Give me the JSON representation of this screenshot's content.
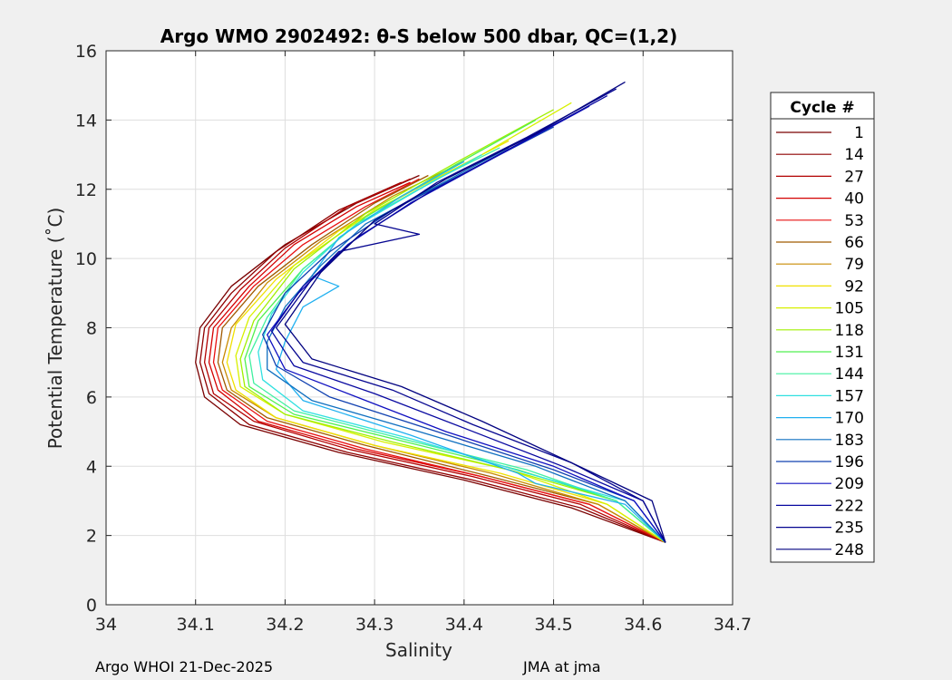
{
  "chart_data": {
    "type": "line",
    "title": "Argo WMO 2902492: θ-S below 500 dbar,  QC=(1,2)",
    "xlabel": "Salinity",
    "ylabel": "Potential Temperature (˚C)",
    "xlim": [
      34.0,
      34.7
    ],
    "ylim": [
      0,
      16
    ],
    "xticks": [
      "34",
      "34.1",
      "34.2",
      "34.3",
      "34.4",
      "34.5",
      "34.6",
      "34.7"
    ],
    "yticks": [
      "0",
      "2",
      "4",
      "6",
      "8",
      "10",
      "12",
      "14",
      "16"
    ],
    "grid": true,
    "legend": {
      "title": "Cycle #",
      "position": "right-outside",
      "entries": [
        "1",
        "14",
        "27",
        "40",
        "53",
        "66",
        "79",
        "92",
        "105",
        "118",
        "131",
        "144",
        "157",
        "170",
        "183",
        "196",
        "209",
        "222",
        "235",
        "248"
      ],
      "colors": [
        "#7a0000",
        "#8f0000",
        "#b20000",
        "#d40000",
        "#e81010",
        "#a05a00",
        "#c88a00",
        "#f0e000",
        "#d8f000",
        "#a0f000",
        "#50f050",
        "#40f0a0",
        "#30e0e0",
        "#20b0f0",
        "#1070c0",
        "#1040b0",
        "#1010c0",
        "#0808a0",
        "#050590",
        "#020280"
      ]
    },
    "series": [
      {
        "values": [
          [
            34.35,
            12.4
          ],
          [
            34.28,
            11.6
          ],
          [
            34.2,
            10.4
          ],
          [
            34.14,
            9.2
          ],
          [
            34.105,
            8.0
          ],
          [
            34.1,
            7.0
          ],
          [
            34.11,
            6.0
          ],
          [
            34.15,
            5.2
          ],
          [
            34.26,
            4.4
          ],
          [
            34.4,
            3.6
          ],
          [
            34.52,
            2.8
          ],
          [
            34.625,
            1.8
          ]
        ]
      },
      {
        "values": [
          [
            34.33,
            12.2
          ],
          [
            34.26,
            11.4
          ],
          [
            34.19,
            10.2
          ],
          [
            34.14,
            9.0
          ],
          [
            34.11,
            8.0
          ],
          [
            34.105,
            7.0
          ],
          [
            34.115,
            6.1
          ],
          [
            34.16,
            5.2
          ],
          [
            34.27,
            4.4
          ],
          [
            34.41,
            3.6
          ],
          [
            34.53,
            2.8
          ],
          [
            34.625,
            1.8
          ]
        ]
      },
      {
        "values": [
          [
            34.34,
            12.3
          ],
          [
            34.27,
            11.5
          ],
          [
            34.2,
            10.3
          ],
          [
            34.15,
            9.1
          ],
          [
            34.115,
            8.0
          ],
          [
            34.11,
            7.0
          ],
          [
            34.12,
            6.1
          ],
          [
            34.165,
            5.3
          ],
          [
            34.27,
            4.5
          ],
          [
            34.41,
            3.7
          ],
          [
            34.53,
            2.9
          ],
          [
            34.625,
            1.8
          ]
        ]
      },
      {
        "values": [
          [
            34.34,
            12.2
          ],
          [
            34.28,
            11.5
          ],
          [
            34.21,
            10.4
          ],
          [
            34.16,
            9.2
          ],
          [
            34.12,
            8.0
          ],
          [
            34.115,
            7.0
          ],
          [
            34.125,
            6.2
          ],
          [
            34.17,
            5.3
          ],
          [
            34.28,
            4.5
          ],
          [
            34.42,
            3.7
          ],
          [
            34.54,
            2.9
          ],
          [
            34.625,
            1.8
          ]
        ]
      },
      {
        "values": [
          [
            34.35,
            12.3
          ],
          [
            34.29,
            11.5
          ],
          [
            34.22,
            10.4
          ],
          [
            34.165,
            9.2
          ],
          [
            34.125,
            8.0
          ],
          [
            34.12,
            7.0
          ],
          [
            34.13,
            6.2
          ],
          [
            34.18,
            5.3
          ],
          [
            34.29,
            4.5
          ],
          [
            34.42,
            3.7
          ],
          [
            34.54,
            2.9
          ],
          [
            34.625,
            1.8
          ]
        ]
      },
      {
        "values": [
          [
            34.36,
            12.4
          ],
          [
            34.3,
            11.6
          ],
          [
            34.23,
            10.4
          ],
          [
            34.17,
            9.2
          ],
          [
            34.13,
            8.0
          ],
          [
            34.125,
            7.0
          ],
          [
            34.135,
            6.2
          ],
          [
            34.18,
            5.4
          ],
          [
            34.29,
            4.6
          ],
          [
            34.43,
            3.7
          ],
          [
            34.55,
            2.9
          ],
          [
            34.625,
            1.8
          ]
        ]
      },
      {
        "values": [
          [
            34.4,
            12.8
          ],
          [
            34.32,
            11.8
          ],
          [
            34.24,
            10.5
          ],
          [
            34.18,
            9.3
          ],
          [
            34.14,
            8.0
          ],
          [
            34.13,
            7.0
          ],
          [
            34.14,
            6.2
          ],
          [
            34.19,
            5.4
          ],
          [
            34.3,
            4.6
          ],
          [
            34.43,
            3.8
          ],
          [
            34.55,
            2.9
          ],
          [
            34.625,
            1.8
          ]
        ]
      },
      {
        "values": [
          [
            34.45,
            13.4
          ],
          [
            34.36,
            12.2
          ],
          [
            34.26,
            10.8
          ],
          [
            34.19,
            9.4
          ],
          [
            34.145,
            8.1
          ],
          [
            34.135,
            7.0
          ],
          [
            34.145,
            6.2
          ],
          [
            34.19,
            5.4
          ],
          [
            34.3,
            4.6
          ],
          [
            34.44,
            3.8
          ],
          [
            34.56,
            2.9
          ],
          [
            34.625,
            1.8
          ]
        ]
      },
      {
        "values": [
          [
            34.52,
            14.5
          ],
          [
            34.42,
            13.0
          ],
          [
            34.3,
            11.4
          ],
          [
            34.21,
            9.8
          ],
          [
            34.16,
            8.3
          ],
          [
            34.145,
            7.2
          ],
          [
            34.15,
            6.3
          ],
          [
            34.2,
            5.5
          ],
          [
            34.31,
            4.7
          ],
          [
            34.45,
            3.9
          ],
          [
            34.56,
            2.9
          ],
          [
            34.625,
            1.8
          ]
        ]
      },
      {
        "values": [
          [
            34.5,
            14.3
          ],
          [
            34.4,
            12.9
          ],
          [
            34.29,
            11.3
          ],
          [
            34.21,
            9.7
          ],
          [
            34.165,
            8.2
          ],
          [
            34.15,
            7.1
          ],
          [
            34.155,
            6.3
          ],
          [
            34.2,
            5.5
          ],
          [
            34.32,
            4.7
          ],
          [
            34.45,
            3.9
          ],
          [
            34.57,
            3.0
          ],
          [
            34.625,
            1.8
          ]
        ]
      },
      {
        "values": [
          [
            34.48,
            14.0
          ],
          [
            34.39,
            12.7
          ],
          [
            34.29,
            11.2
          ],
          [
            34.22,
            9.7
          ],
          [
            34.17,
            8.2
          ],
          [
            34.155,
            7.1
          ],
          [
            34.16,
            6.3
          ],
          [
            34.21,
            5.5
          ],
          [
            34.32,
            4.8
          ],
          [
            34.46,
            3.9
          ],
          [
            34.57,
            3.0
          ],
          [
            34.625,
            1.8
          ]
        ]
      },
      {
        "values": [
          [
            34.44,
            13.2
          ],
          [
            34.37,
            12.3
          ],
          [
            34.28,
            11.0
          ],
          [
            34.22,
            9.7
          ],
          [
            34.18,
            8.3
          ],
          [
            34.16,
            7.2
          ],
          [
            34.165,
            6.4
          ],
          [
            34.21,
            5.6
          ],
          [
            34.33,
            4.8
          ],
          [
            34.47,
            3.9
          ],
          [
            34.57,
            3.0
          ],
          [
            34.625,
            1.8
          ]
        ]
      },
      {
        "values": [
          [
            34.42,
            13.0
          ],
          [
            34.35,
            12.0
          ],
          [
            34.27,
            10.8
          ],
          [
            34.22,
            9.6
          ],
          [
            34.185,
            8.4
          ],
          [
            34.17,
            7.3
          ],
          [
            34.175,
            6.5
          ],
          [
            34.22,
            5.6
          ],
          [
            34.34,
            4.8
          ],
          [
            34.47,
            3.8
          ],
          [
            34.58,
            3.0
          ],
          [
            34.625,
            1.8
          ]
        ]
      },
      {
        "values": [
          [
            34.4,
            12.8
          ],
          [
            34.33,
            11.8
          ],
          [
            34.26,
            10.6
          ],
          [
            34.23,
            9.5
          ],
          [
            34.26,
            9.2
          ],
          [
            34.22,
            8.6
          ],
          [
            34.2,
            7.6
          ],
          [
            34.19,
            6.8
          ],
          [
            34.22,
            5.9
          ],
          [
            34.34,
            4.9
          ],
          [
            34.46,
            3.8
          ],
          [
            34.48,
            3.5
          ],
          [
            34.58,
            2.9
          ],
          [
            34.625,
            1.8
          ]
        ]
      },
      {
        "values": [
          [
            34.45,
            13.2
          ],
          [
            34.37,
            12.1
          ],
          [
            34.29,
            11.0
          ],
          [
            34.24,
            9.8
          ],
          [
            34.2,
            8.6
          ],
          [
            34.18,
            7.6
          ],
          [
            34.18,
            6.8
          ],
          [
            34.23,
            5.9
          ],
          [
            34.35,
            5.0
          ],
          [
            34.48,
            4.0
          ],
          [
            34.58,
            3.0
          ],
          [
            34.625,
            1.8
          ]
        ]
      },
      {
        "values": [
          [
            34.5,
            13.8
          ],
          [
            34.41,
            12.6
          ],
          [
            34.32,
            11.4
          ],
          [
            34.25,
            10.2
          ],
          [
            34.2,
            9.0
          ],
          [
            34.175,
            7.8
          ],
          [
            34.19,
            6.9
          ],
          [
            34.25,
            6.0
          ],
          [
            34.37,
            5.0
          ],
          [
            34.5,
            3.9
          ],
          [
            34.59,
            3.0
          ],
          [
            34.625,
            1.8
          ]
        ]
      },
      {
        "values": [
          [
            34.54,
            14.4
          ],
          [
            34.44,
            13.0
          ],
          [
            34.34,
            11.6
          ],
          [
            34.27,
            10.4
          ],
          [
            34.215,
            9.0
          ],
          [
            34.18,
            7.8
          ],
          [
            34.2,
            6.8
          ],
          [
            34.28,
            6.0
          ],
          [
            34.38,
            5.0
          ],
          [
            34.5,
            4.0
          ],
          [
            34.59,
            3.0
          ],
          [
            34.625,
            1.8
          ]
        ]
      },
      {
        "values": [
          [
            34.56,
            14.7
          ],
          [
            34.46,
            13.3
          ],
          [
            34.36,
            11.9
          ],
          [
            34.28,
            10.6
          ],
          [
            34.22,
            9.2
          ],
          [
            34.185,
            7.9
          ],
          [
            34.21,
            6.9
          ],
          [
            34.3,
            6.1
          ],
          [
            34.4,
            5.1
          ],
          [
            34.51,
            4.0
          ],
          [
            34.6,
            3.0
          ],
          [
            34.625,
            1.8
          ]
        ]
      },
      {
        "values": [
          [
            34.57,
            14.9
          ],
          [
            34.47,
            13.5
          ],
          [
            34.37,
            12.2
          ],
          [
            34.3,
            11.0
          ],
          [
            34.35,
            10.7
          ],
          [
            34.26,
            10.2
          ],
          [
            34.23,
            9.4
          ],
          [
            34.19,
            8.0
          ],
          [
            34.22,
            7.0
          ],
          [
            34.32,
            6.2
          ],
          [
            34.41,
            5.2
          ],
          [
            34.52,
            4.1
          ],
          [
            34.6,
            3.0
          ],
          [
            34.625,
            1.8
          ]
        ]
      },
      {
        "values": [
          [
            34.58,
            15.1
          ],
          [
            34.48,
            13.6
          ],
          [
            34.38,
            12.3
          ],
          [
            34.3,
            11.1
          ],
          [
            34.24,
            9.6
          ],
          [
            34.2,
            8.1
          ],
          [
            34.23,
            7.1
          ],
          [
            34.33,
            6.3
          ],
          [
            34.42,
            5.3
          ],
          [
            34.52,
            4.1
          ],
          [
            34.61,
            3.0
          ],
          [
            34.625,
            1.8
          ]
        ]
      }
    ]
  },
  "footer": {
    "left": "Argo WHOI 21-Dec-2025",
    "right": "JMA at jma"
  }
}
